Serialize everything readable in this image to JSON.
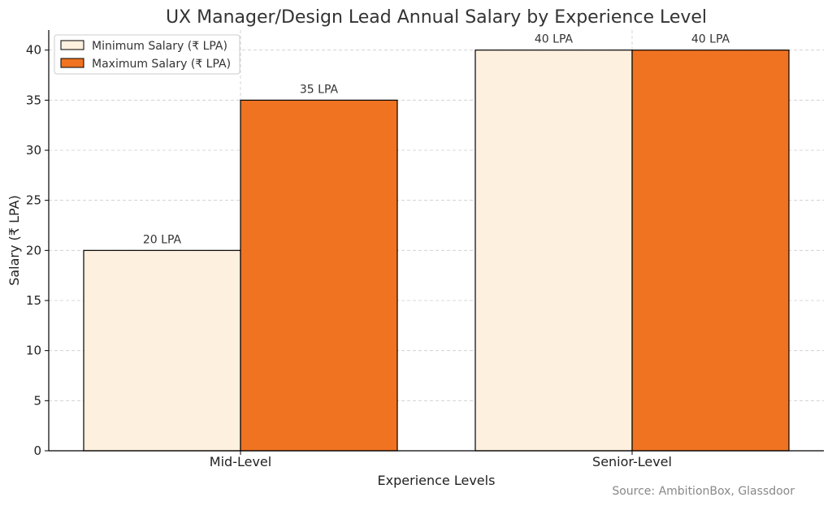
{
  "chart_data": {
    "type": "bar",
    "title": "UX Manager/Design Lead Annual Salary by Experience Level",
    "xlabel": "Experience Levels",
    "ylabel": "Salary (₹ LPA)",
    "categories": [
      "Mid-Level",
      "Senior-Level"
    ],
    "series": [
      {
        "name": "Minimum Salary (₹ LPA)",
        "values": [
          20,
          40
        ],
        "labels": [
          "20 LPA",
          "40 LPA"
        ],
        "color": "#fef0df"
      },
      {
        "name": "Maximum Salary (₹ LPA)",
        "values": [
          35,
          40
        ],
        "labels": [
          "35 LPA",
          "40 LPA"
        ],
        "color": "#ef7321"
      }
    ],
    "ylim": [
      0,
      42
    ],
    "yticks": [
      0,
      5,
      10,
      15,
      20,
      25,
      30,
      35,
      40
    ],
    "grid": true,
    "legend_position": "top-left",
    "source": "Source: AmbitionBox, Glassdoor"
  }
}
